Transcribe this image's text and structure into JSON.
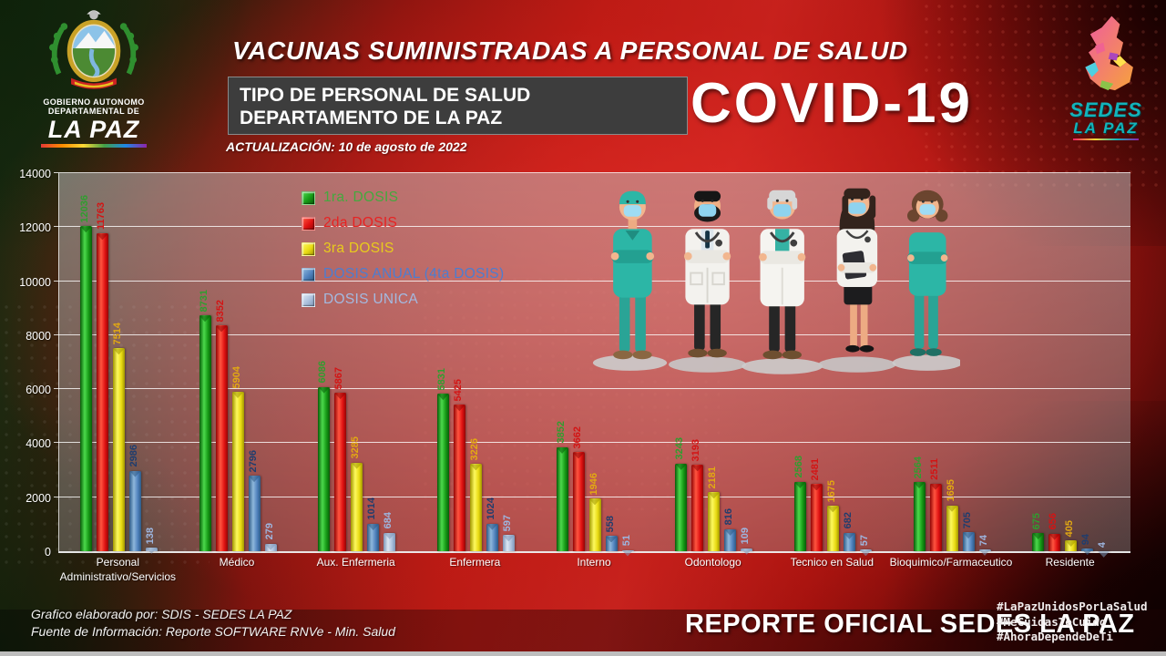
{
  "header": {
    "title": "VACUNAS SUMINISTRADAS A PERSONAL DE SALUD",
    "subtitle_line1": "TIPO DE PERSONAL DE SALUD",
    "subtitle_line2": "DEPARTAMENTO DE LA PAZ",
    "covid": "COVID-19",
    "update": "ACTUALIZACIÓN: 10 de agosto de 2022"
  },
  "logo_left": {
    "line1": "GOBIERNO AUTONOMO",
    "line2": "DEPARTAMENTAL DE",
    "name": "LA PAZ"
  },
  "logo_right": {
    "line1": "SEDES",
    "line2": "LA PAZ"
  },
  "footer": {
    "credit1": "Grafico elaborado por: SDIS - SEDES LA PAZ",
    "credit2": "Fuente de Información: Reporte SOFTWARE RNVe - Min. Salud",
    "official": "REPORTE OFICIAL SEDES LA PAZ",
    "hashtags": [
      "#LaPazUnidosPorLaSalud",
      "#MeCuidasTeCuido",
      "#AhoraDependeDeTi"
    ]
  },
  "colors": {
    "background_red": "#c02020",
    "background_green": "#16300f",
    "panel_gray": "#3d3d3d",
    "sedes_teal": "#13b3ba"
  },
  "chart_data": {
    "type": "bar",
    "title": "VACUNAS SUMINISTRADAS A PERSONAL DE SALUD — TIPO DE PERSONAL DE SALUD, DEPARTAMENTO DE LA PAZ",
    "xlabel": "",
    "ylabel": "",
    "ylim": [
      0,
      14000
    ],
    "yticks": [
      0,
      2000,
      4000,
      6000,
      8000,
      10000,
      12000,
      14000
    ],
    "grid": true,
    "legend_position": "inside upper-left",
    "categories": [
      "Personal Administrativo/Servicios",
      "Médico",
      "Aux. Enfermeria",
      "Enfermera",
      "Interno",
      "Odontologo",
      "Tecnico en Salud",
      "Bioquimico/Farmaceutico",
      "Residente"
    ],
    "series": [
      {
        "name": "1ra. DOSIS",
        "values": [
          12036,
          8731,
          6086,
          5831,
          3852,
          3243,
          2568,
          2564,
          675
        ],
        "bar_color": "#169a16",
        "bar_light": "#4cd94c",
        "bar_dark": "#085c08",
        "label_color": "#2f9e2f",
        "legend_color": "#44a93e"
      },
      {
        "name": "2da DOSIS",
        "values": [
          11763,
          8352,
          5867,
          5425,
          3662,
          3193,
          2481,
          2511,
          656
        ],
        "bar_color": "#e01212",
        "bar_light": "#ff5540",
        "bar_dark": "#930505",
        "label_color": "#d31414",
        "legend_color": "#e82222"
      },
      {
        "name": "3ra DOSIS",
        "values": [
          7514,
          5904,
          3285,
          3226,
          1946,
          2181,
          1675,
          1695,
          405
        ],
        "bar_color": "#e8da12",
        "bar_light": "#fdf95e",
        "bar_dark": "#a19700",
        "label_color": "#e2a912",
        "legend_color": "#e8cb1d"
      },
      {
        "name": "DOSIS ANUAL (4ta DOSIS)",
        "values": [
          2986,
          2796,
          1014,
          1024,
          558,
          816,
          682,
          705,
          94
        ],
        "bar_color": "#4f81bd",
        "bar_light": "#8fb8dc",
        "bar_dark": "#2d5a85",
        "label_color": "#1f3d6e",
        "legend_color": "#4c7dd0"
      },
      {
        "name": "DOSIS UNICA",
        "values": [
          138,
          279,
          684,
          597,
          51,
          109,
          57,
          74,
          4
        ],
        "bar_color": "#aabfdb",
        "bar_light": "#dde7f3",
        "bar_dark": "#7e97b8",
        "label_color": "#9db6e0",
        "legend_color": "#a3b9e0"
      }
    ]
  }
}
